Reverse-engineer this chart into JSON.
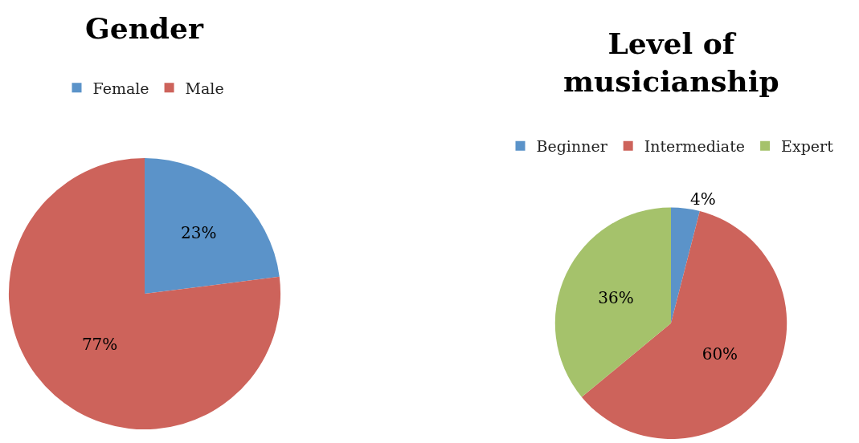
{
  "chart_data": [
    {
      "type": "pie",
      "title": "Gender",
      "categories": [
        "Female",
        "Male"
      ],
      "values": [
        23,
        77
      ],
      "colors": [
        "#5b93c9",
        "#cd635b"
      ],
      "value_labels": [
        "23%",
        "77%"
      ],
      "legend": "top"
    },
    {
      "type": "pie",
      "title": "Level of musicianship",
      "categories": [
        "Beginner",
        "Intermediate",
        "Expert"
      ],
      "values": [
        4,
        60,
        36
      ],
      "colors": [
        "#5b93c9",
        "#cd635b",
        "#a5c26b"
      ],
      "value_labels": [
        "4%",
        "60%",
        "36%"
      ],
      "legend": "top"
    }
  ]
}
